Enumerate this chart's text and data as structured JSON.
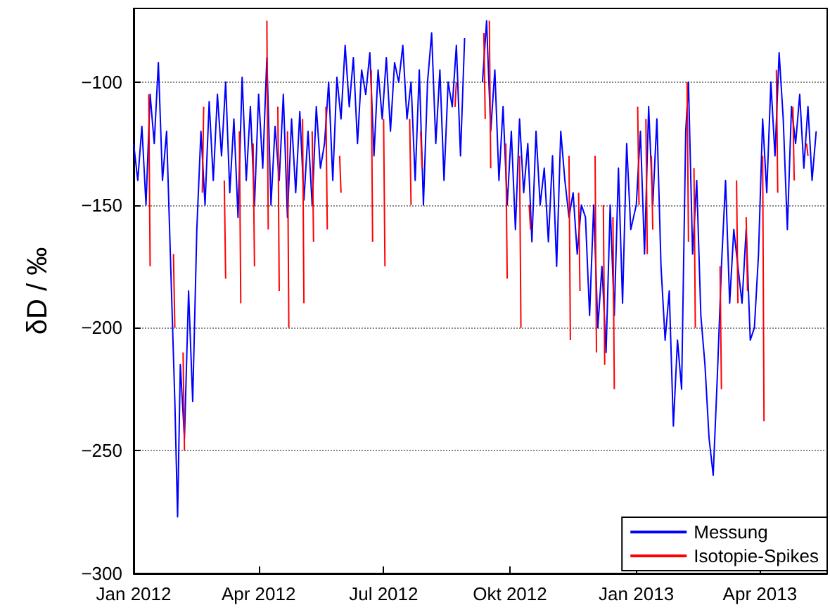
{
  "chart_data": {
    "type": "line",
    "ylabel": "δD / ‰",
    "xlim": [
      "2012-01-01",
      "2013-05-20"
    ],
    "ylim": [
      -300,
      -70
    ],
    "xticks": [
      {
        "value": "2012-01-01",
        "label": "Jan 2012"
      },
      {
        "value": "2012-04-01",
        "label": "Apr 2012"
      },
      {
        "value": "2012-07-01",
        "label": "Jul 2012"
      },
      {
        "value": "2012-10-01",
        "label": "Okt 2012"
      },
      {
        "value": "2013-01-01",
        "label": "Jan 2013"
      },
      {
        "value": "2013-04-01",
        "label": "Apr 2013"
      }
    ],
    "yticks": [
      -300,
      -250,
      -200,
      -150,
      -100
    ],
    "grid": "y",
    "legend": "bottom right",
    "marker": "none",
    "line_style": "solid",
    "series": [
      {
        "name": "Messung",
        "color": "#0000ff",
        "x": [
          "2012-01-01",
          "2012-01-04",
          "2012-01-07",
          "2012-01-10",
          "2012-01-13",
          "2012-01-16",
          "2012-01-19",
          "2012-01-22",
          "2012-01-25",
          "2012-01-28",
          "2012-01-31",
          "2012-02-02",
          "2012-02-04",
          "2012-02-07",
          "2012-02-10",
          "2012-02-13",
          "2012-02-16",
          "2012-02-19",
          "2012-02-22",
          "2012-02-25",
          "2012-02-28",
          "2012-03-02",
          "2012-03-05",
          "2012-03-08",
          "2012-03-11",
          "2012-03-14",
          "2012-03-17",
          "2012-03-20",
          "2012-03-23",
          "2012-03-26",
          "2012-03-29",
          "2012-04-01",
          "2012-04-04",
          "2012-04-07",
          "2012-04-10",
          "2012-04-13",
          "2012-04-16",
          "2012-04-19",
          "2012-04-22",
          "2012-04-25",
          "2012-04-28",
          "2012-05-01",
          "2012-05-04",
          "2012-05-07",
          "2012-05-10",
          "2012-05-13",
          "2012-05-16",
          "2012-05-19",
          "2012-05-22",
          "2012-05-25",
          "2012-05-28",
          "2012-05-31",
          "2012-06-03",
          "2012-06-06",
          "2012-06-09",
          "2012-06-12",
          "2012-06-15",
          "2012-06-18",
          "2012-06-21",
          "2012-06-24",
          "2012-06-27",
          "2012-06-30",
          "2012-07-03",
          "2012-07-06",
          "2012-07-09",
          "2012-07-12",
          "2012-07-15",
          "2012-07-18",
          "2012-07-21",
          "2012-07-24",
          "2012-07-27",
          "2012-07-30",
          "2012-08-02",
          "2012-08-05",
          "2012-08-08",
          "2012-08-11",
          "2012-08-14",
          "2012-08-17",
          "2012-08-20",
          "2012-08-23",
          "2012-08-26",
          "2012-08-29",
          "2012-09-04",
          "2012-09-11",
          "2012-09-14",
          "2012-09-17",
          "2012-09-20",
          "2012-09-23",
          "2012-09-26",
          "2012-09-29",
          "2012-10-02",
          "2012-10-05",
          "2012-10-08",
          "2012-10-11",
          "2012-10-14",
          "2012-10-17",
          "2012-10-20",
          "2012-10-23",
          "2012-10-26",
          "2012-10-29",
          "2012-11-01",
          "2012-11-04",
          "2012-11-07",
          "2012-11-10",
          "2012-11-13",
          "2012-11-16",
          "2012-11-19",
          "2012-11-22",
          "2012-11-25",
          "2012-11-28",
          "2012-12-01",
          "2012-12-04",
          "2012-12-07",
          "2012-12-10",
          "2012-12-13",
          "2012-12-16",
          "2012-12-19",
          "2012-12-22",
          "2012-12-25",
          "2012-12-28",
          "2013-01-01",
          "2013-01-04",
          "2013-01-07",
          "2013-01-10",
          "2013-01-13",
          "2013-01-16",
          "2013-01-19",
          "2013-01-22",
          "2013-01-25",
          "2013-01-28",
          "2013-01-31",
          "2013-02-03",
          "2013-02-06",
          "2013-02-08",
          "2013-02-11",
          "2013-02-14",
          "2013-02-17",
          "2013-02-20",
          "2013-02-23",
          "2013-02-26",
          "2013-03-01",
          "2013-03-04",
          "2013-03-07",
          "2013-03-10",
          "2013-03-13",
          "2013-03-16",
          "2013-03-19",
          "2013-03-22",
          "2013-03-25",
          "2013-03-28",
          "2013-03-31",
          "2013-04-03",
          "2013-04-06",
          "2013-04-09",
          "2013-04-12",
          "2013-04-15",
          "2013-04-18",
          "2013-04-21",
          "2013-04-24",
          "2013-04-27",
          "2013-04-30",
          "2013-05-03",
          "2013-05-06",
          "2013-05-09",
          "2013-05-12"
        ],
        "values": [
          -125,
          -140,
          -118,
          -150,
          -105,
          -125,
          -92,
          -140,
          -120,
          -175,
          -230,
          -277,
          -215,
          -245,
          -185,
          -230,
          -160,
          -120,
          -150,
          -108,
          -140,
          -105,
          -130,
          -100,
          -145,
          -115,
          -155,
          -98,
          -140,
          -110,
          -150,
          -105,
          -135,
          -90,
          -150,
          -118,
          -140,
          -105,
          -155,
          -115,
          -145,
          -112,
          -148,
          -120,
          -150,
          -110,
          -135,
          -125,
          -100,
          -140,
          -98,
          -115,
          -85,
          -110,
          -90,
          -125,
          -95,
          -105,
          -88,
          -130,
          -95,
          -115,
          -90,
          -120,
          -92,
          -100,
          -85,
          -115,
          -100,
          -140,
          -95,
          -150,
          -100,
          -80,
          -125,
          -95,
          -140,
          -100,
          -110,
          -85,
          -130,
          -82,
          null,
          -100,
          -75,
          -120,
          -95,
          -140,
          -110,
          -150,
          -120,
          -160,
          -115,
          -145,
          -125,
          -165,
          -120,
          -150,
          -135,
          -165,
          -130,
          -175,
          -120,
          -140,
          -155,
          -145,
          -170,
          -150,
          -155,
          -195,
          -150,
          -200,
          -175,
          -210,
          -150,
          -195,
          -135,
          -190,
          -125,
          -160,
          -150,
          -120,
          -170,
          -110,
          -150,
          -115,
          -175,
          -205,
          -185,
          -240,
          -205,
          -225,
          -120,
          -100,
          -170,
          -140,
          -195,
          -215,
          -245,
          -260,
          -220,
          -175,
          -140,
          -190,
          -160,
          -175,
          -190,
          -160,
          -205,
          -200,
          -170,
          -115,
          -145,
          -100,
          -130,
          -88,
          -115,
          -160,
          -110,
          -125,
          -105,
          -135,
          -110,
          -140,
          -120
        ]
      },
      {
        "name": "Isotopie-Spikes",
        "color": "#ff0000",
        "x": [
          "2012-01-12",
          "2012-01-13",
          "2012-01-14",
          "2012-01-30",
          "2012-01-31",
          "2012-02-01",
          "2012-02-06",
          "2012-02-07",
          "2012-02-08",
          "2012-02-20",
          "2012-02-21",
          "2012-02-22",
          "2012-03-07",
          "2012-03-08",
          "2012-03-09",
          "2012-03-18",
          "2012-03-19",
          "2012-03-20",
          "2012-03-28",
          "2012-03-29",
          "2012-03-30",
          "2012-04-07",
          "2012-04-08",
          "2012-04-09",
          "2012-04-15",
          "2012-04-16",
          "2012-04-17",
          "2012-04-22",
          "2012-04-23",
          "2012-04-24",
          "2012-05-03",
          "2012-05-04",
          "2012-05-05",
          "2012-05-10",
          "2012-05-11",
          "2012-05-12",
          "2012-05-20",
          "2012-05-21",
          "2012-05-22",
          "2012-05-30",
          "2012-05-31",
          "2012-06-01",
          "2012-06-22",
          "2012-06-23",
          "2012-06-24",
          "2012-07-01",
          "2012-07-02",
          "2012-07-03",
          "2012-07-20",
          "2012-07-21",
          "2012-07-22",
          "2012-07-28",
          "2012-07-29",
          "2012-07-30",
          "2012-08-22",
          "2012-08-23",
          "2012-08-24",
          "2012-09-12",
          "2012-09-13",
          "2012-09-14",
          "2012-09-16",
          "2012-09-17",
          "2012-09-18",
          "2012-09-28",
          "2012-09-29",
          "2012-09-30",
          "2012-10-08",
          "2012-10-09",
          "2012-10-10",
          "2012-10-15",
          "2012-10-16",
          "2012-10-17",
          "2012-11-13",
          "2012-11-14",
          "2012-11-15",
          "2012-11-20",
          "2012-11-21",
          "2012-11-22",
          "2012-12-02",
          "2012-12-03",
          "2012-12-04",
          "2012-12-08",
          "2012-12-09",
          "2012-12-10",
          "2012-12-15",
          "2012-12-16",
          "2012-12-17",
          "2013-01-02",
          "2013-01-03",
          "2013-01-04",
          "2013-01-08",
          "2013-01-09",
          "2013-01-10",
          "2013-01-12",
          "2013-01-13",
          "2013-01-14",
          "2013-02-07",
          "2013-02-08",
          "2013-02-09",
          "2013-02-12",
          "2013-02-13",
          "2013-02-14",
          "2013-03-03",
          "2013-03-04",
          "2013-03-05",
          "2013-03-15",
          "2013-03-16",
          "2013-03-17",
          "2013-03-22",
          "2013-03-23",
          "2013-03-24",
          "2013-04-03",
          "2013-04-04",
          "2013-04-05",
          "2013-04-13",
          "2013-04-14",
          "2013-04-15",
          "2013-04-25",
          "2013-04-26",
          "2013-04-27",
          "2013-05-05",
          "2013-05-06"
        ],
        "values": [
          -105,
          -175,
          null,
          -170,
          -200,
          null,
          -210,
          -250,
          null,
          -145,
          -110,
          null,
          -140,
          -180,
          null,
          -120,
          -190,
          null,
          -125,
          -175,
          null,
          -75,
          -160,
          null,
          -110,
          -185,
          null,
          -120,
          -200,
          null,
          -115,
          -190,
          null,
          -120,
          -165,
          null,
          -110,
          -160,
          null,
          -130,
          -145,
          null,
          -95,
          -165,
          null,
          -115,
          -175,
          null,
          -115,
          -150,
          null,
          -120,
          -135,
          null,
          -110,
          -100,
          null,
          -80,
          -115,
          null,
          -75,
          -135,
          null,
          -125,
          -180,
          null,
          -130,
          -200,
          null,
          -150,
          -160,
          null,
          -130,
          -205,
          null,
          -145,
          -185,
          null,
          -130,
          -210,
          null,
          -150,
          -215,
          null,
          -155,
          -225,
          null,
          -110,
          -150,
          null,
          -115,
          -170,
          null,
          -130,
          -160,
          null,
          -100,
          -165,
          null,
          -135,
          -200,
          null,
          -175,
          -225,
          null,
          -140,
          -190,
          null,
          -155,
          -185,
          null,
          -130,
          -238,
          null,
          -95,
          -145,
          null,
          -110,
          -140,
          null,
          -125,
          -130
        ]
      }
    ]
  }
}
